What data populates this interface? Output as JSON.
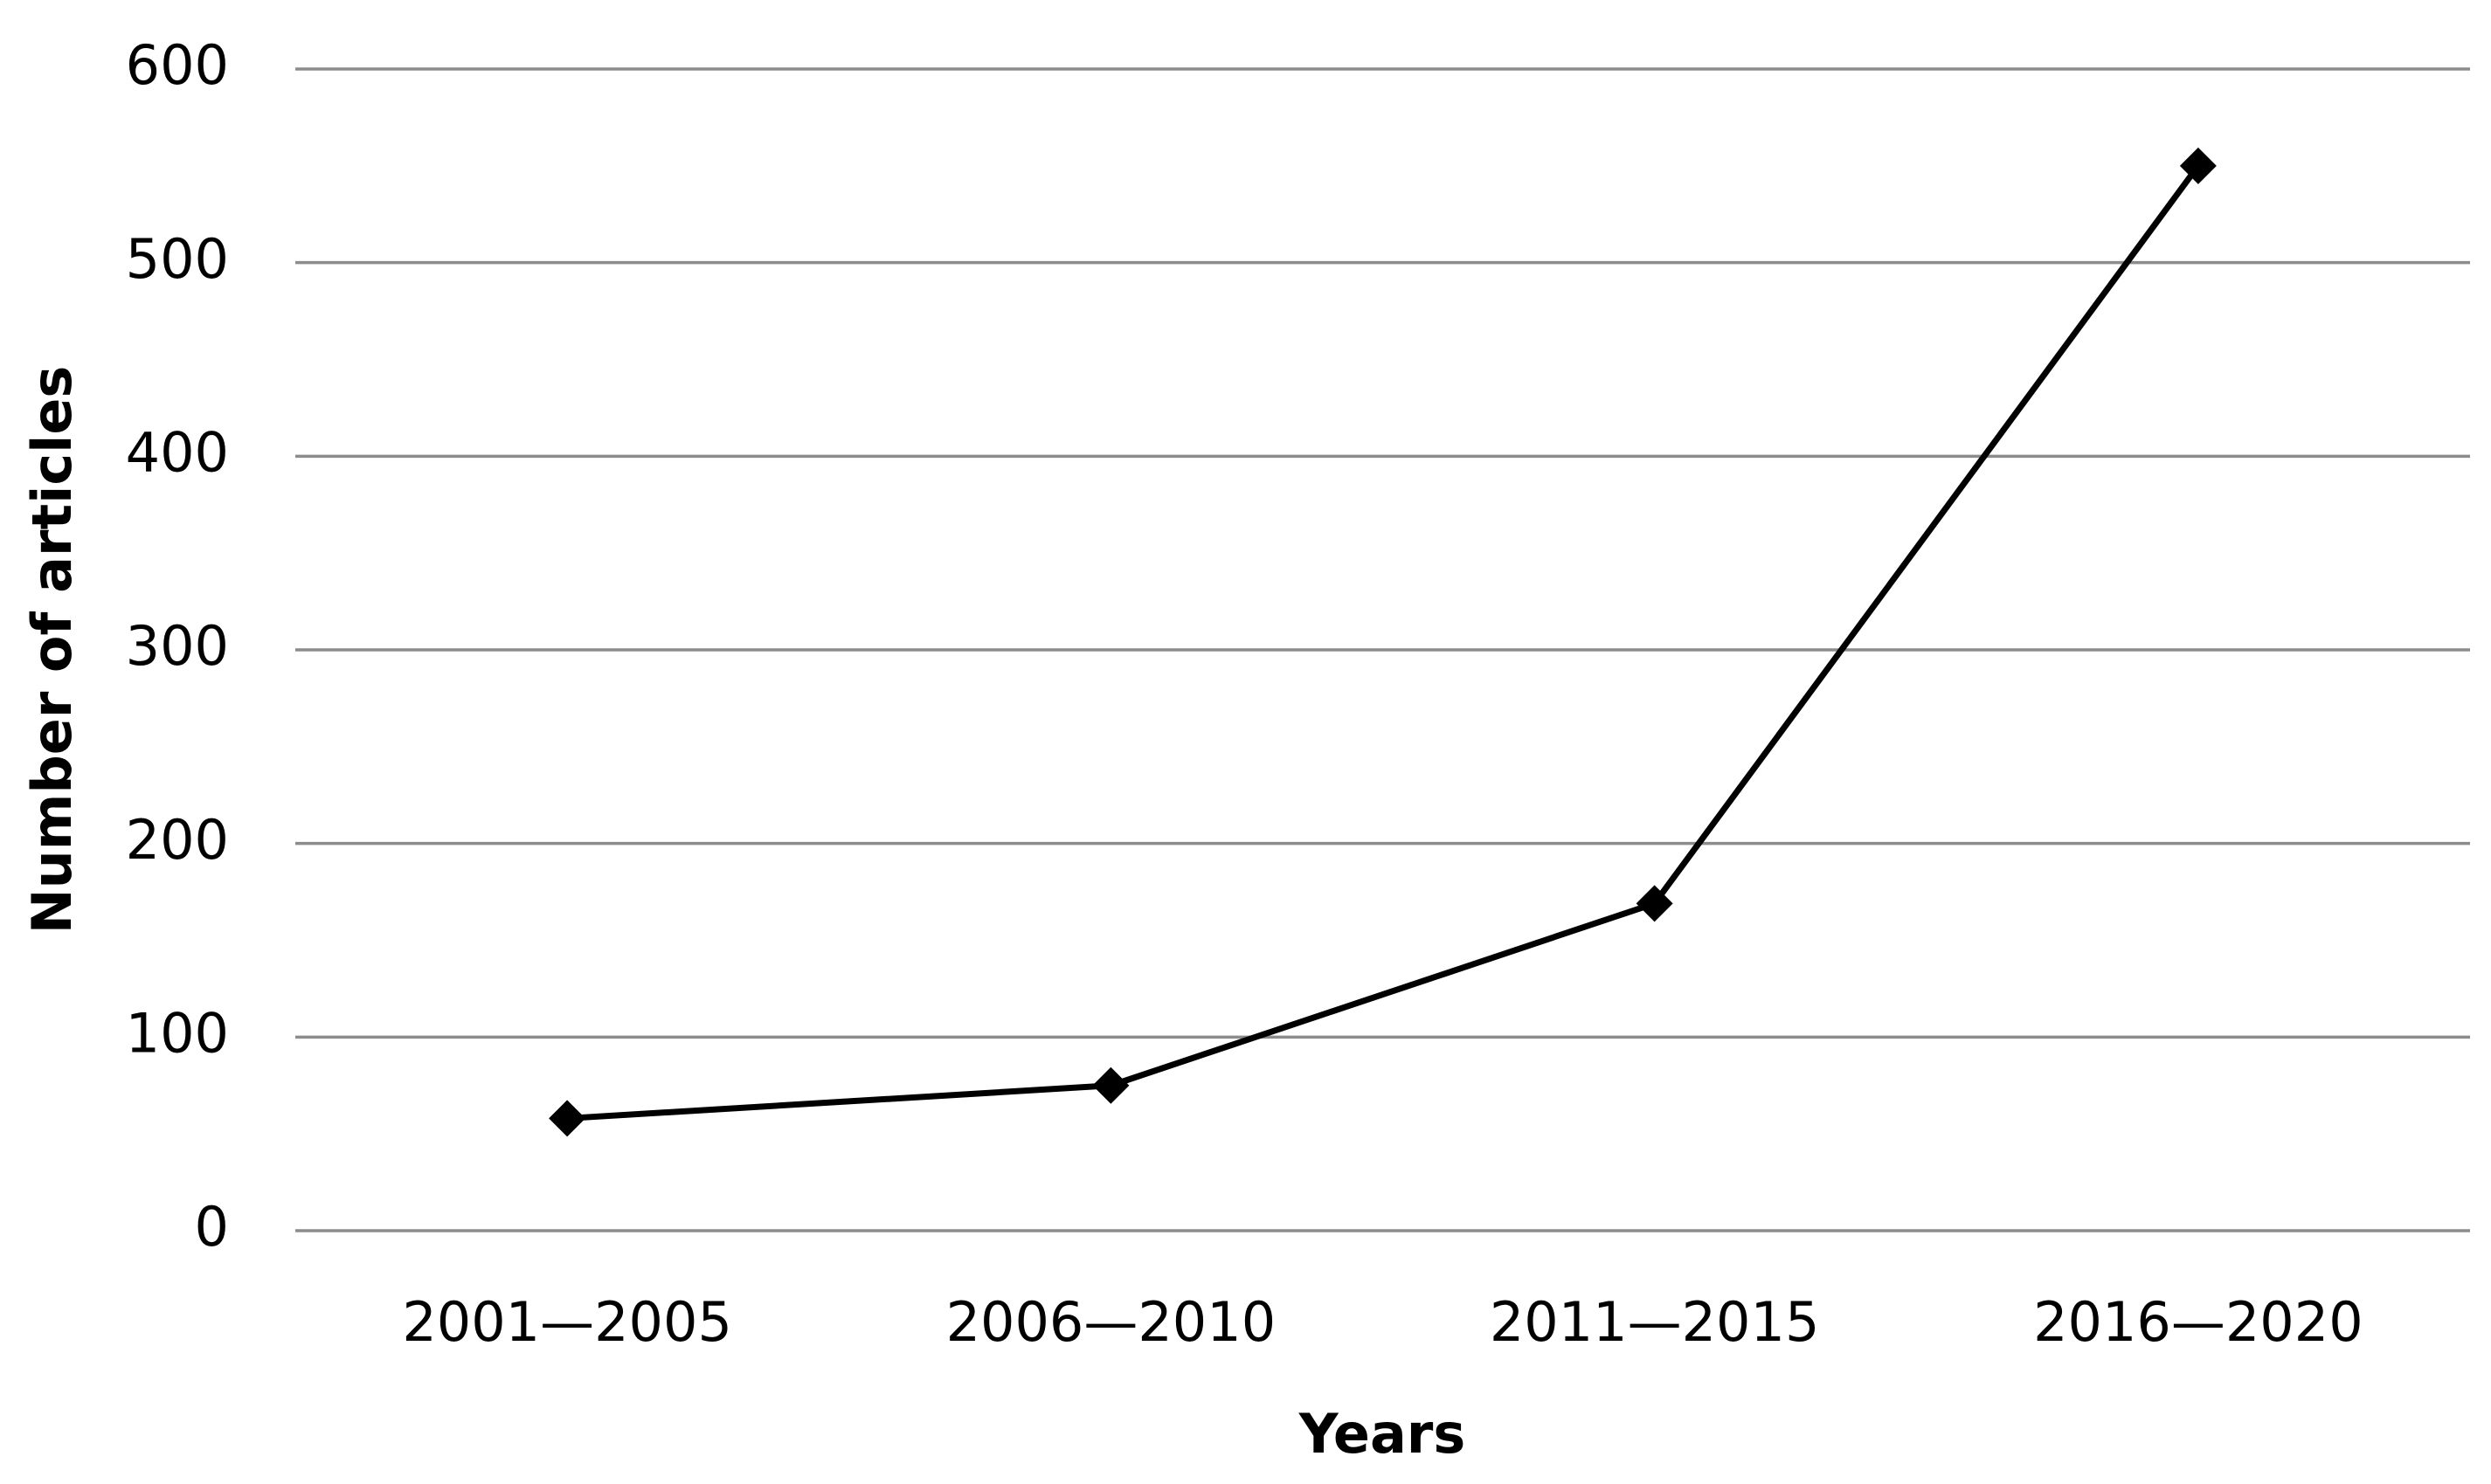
{
  "chart_data": {
    "type": "line",
    "x_label": "Years",
    "y_label": "Number of articles",
    "categories": [
      "2001—2005",
      "2006—2010",
      "2011—2015",
      "2016—2020"
    ],
    "values": [
      58,
      75,
      169,
      550
    ],
    "color": "#000000",
    "ylim": [
      0,
      600
    ],
    "yticks": [
      0,
      100,
      200,
      300,
      400,
      500,
      600
    ],
    "grid": true,
    "marker": "diamond"
  }
}
